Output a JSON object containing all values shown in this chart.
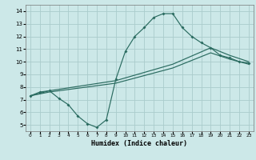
{
  "xlabel": "Humidex (Indice chaleur)",
  "bg_color": "#cce8e8",
  "grid_color": "#aacccc",
  "line_color": "#2a6b60",
  "xlim": [
    -0.5,
    23.5
  ],
  "ylim": [
    4.5,
    14.5
  ],
  "xticks": [
    0,
    1,
    2,
    3,
    4,
    5,
    6,
    7,
    8,
    9,
    10,
    11,
    12,
    13,
    14,
    15,
    16,
    17,
    18,
    19,
    20,
    21,
    22,
    23
  ],
  "yticks": [
    5,
    6,
    7,
    8,
    9,
    10,
    11,
    12,
    13,
    14
  ],
  "curve1_x": [
    0,
    1,
    2,
    3,
    4,
    5,
    6,
    7,
    8,
    9,
    10,
    11,
    12,
    13,
    14,
    15,
    16,
    17,
    18,
    19,
    20,
    21,
    22,
    23
  ],
  "curve1_y": [
    7.3,
    7.6,
    7.7,
    7.1,
    6.6,
    5.7,
    5.1,
    4.8,
    5.4,
    8.6,
    10.8,
    12.0,
    12.7,
    13.5,
    13.8,
    13.8,
    12.7,
    12.0,
    11.5,
    11.1,
    10.5,
    10.3,
    10.0,
    9.9
  ],
  "curve2_x": [
    0,
    2,
    9,
    15,
    19,
    21,
    23
  ],
  "curve2_y": [
    7.3,
    7.7,
    8.5,
    9.8,
    11.1,
    10.5,
    10.0
  ],
  "curve3_x": [
    0,
    2,
    9,
    15,
    19,
    21,
    23
  ],
  "curve3_y": [
    7.3,
    7.6,
    8.3,
    9.5,
    10.7,
    10.2,
    9.8
  ]
}
